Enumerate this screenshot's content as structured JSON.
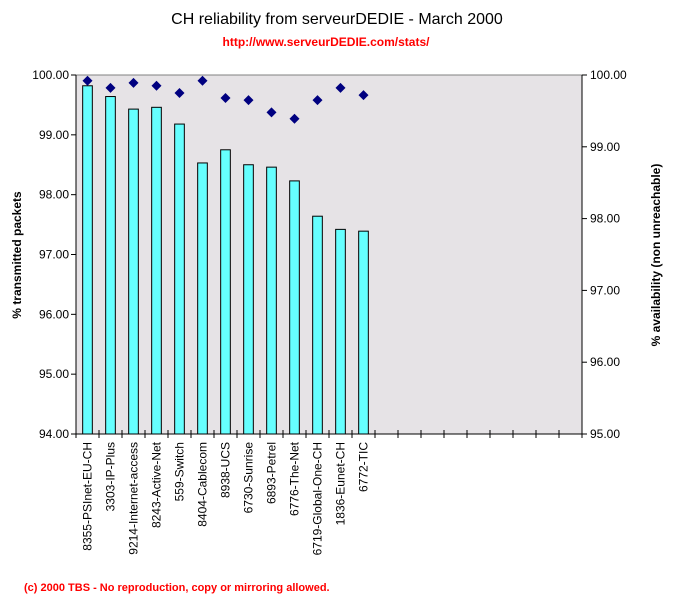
{
  "chart_data": {
    "type": "bar",
    "title": "CH reliability from serveurDEDIE - March 2000",
    "subtitle": "http://www.serveurDEDIE.com/stats/",
    "footer": "(c) 2000 TBS - No reproduction, copy or mirroring allowed.",
    "ylabel": "% transmitted packets",
    "y2label": "% availability (non unreachable)",
    "ylim": [
      94,
      100
    ],
    "y2lim": [
      95,
      100
    ],
    "yticks": [
      "94.00",
      "95.00",
      "96.00",
      "97.00",
      "98.00",
      "99.00",
      "100.00"
    ],
    "y2ticks": [
      "95.00",
      "96.00",
      "97.00",
      "98.00",
      "99.00",
      "100.00"
    ],
    "category_slots": 22,
    "categories": [
      "8355-PSInet-EU-CH",
      "3303-IP-Plus",
      "9214-Internet-access",
      "8243-Active-Net",
      "559-Switch",
      "8404-Cablecom",
      "8938-UCS",
      "6730-Sunrise",
      "6893-Petrel",
      "6776-The-Net",
      "6719-Global-One-CH",
      "1836-Eunet-CH",
      "6772-TIC"
    ],
    "series": [
      {
        "type": "bar",
        "axis": "left",
        "color": "#66ffff",
        "values": [
          99.82,
          99.64,
          99.43,
          99.46,
          99.18,
          98.53,
          98.75,
          98.5,
          98.46,
          98.23,
          97.64,
          97.42,
          97.39
        ]
      },
      {
        "type": "scatter",
        "axis": "right",
        "marker": "diamond",
        "color": "#000080",
        "values": [
          99.92,
          99.82,
          99.89,
          99.85,
          99.75,
          99.92,
          99.68,
          99.65,
          99.48,
          99.39,
          99.65,
          99.82,
          99.72
        ]
      }
    ],
    "plot_background": "#e6e3e6",
    "grid": false
  }
}
